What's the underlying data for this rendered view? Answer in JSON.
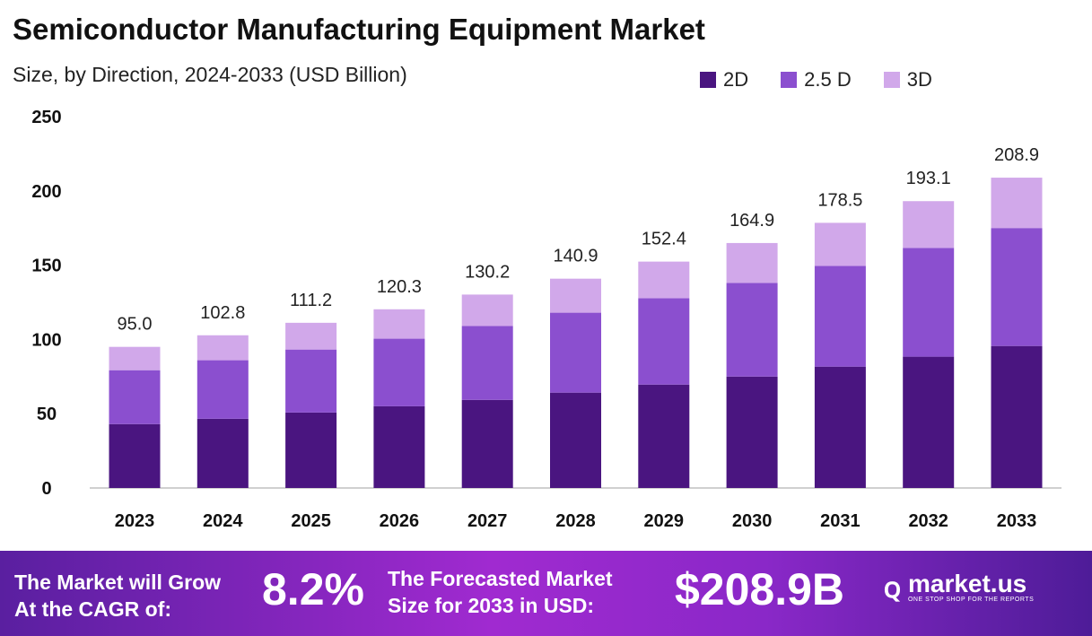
{
  "chart_data": {
    "type": "bar",
    "stacked": true,
    "title": "Semiconductor Manufacturing Equipment Market",
    "subtitle": "Size, by Direction, 2024-2033 (USD Billion)",
    "categories": [
      "2023",
      "2024",
      "2025",
      "2026",
      "2027",
      "2028",
      "2029",
      "2030",
      "2031",
      "2032",
      "2033"
    ],
    "series": [
      {
        "name": "2D",
        "color": "#4a1580",
        "values": [
          43.0,
          46.6,
          50.8,
          55.0,
          59.3,
          64.2,
          69.6,
          75.0,
          81.7,
          88.4,
          95.6
        ]
      },
      {
        "name": "2.5 D",
        "color": "#8b4fcf",
        "values": [
          36.3,
          39.4,
          42.4,
          45.5,
          49.7,
          53.8,
          58.1,
          63.0,
          67.8,
          73.2,
          79.4
        ]
      },
      {
        "name": "3D",
        "color": "#d1a8ea",
        "values": [
          15.7,
          16.8,
          18.0,
          19.8,
          21.2,
          22.9,
          24.7,
          26.9,
          29.0,
          31.5,
          33.9
        ]
      }
    ],
    "totals": [
      "95.0",
      "102.8",
      "111.2",
      "120.3",
      "130.2",
      "140.9",
      "152.4",
      "164.9",
      "178.5",
      "193.1",
      "208.9"
    ],
    "yticks": [
      "0",
      "50",
      "100",
      "150",
      "200",
      "250"
    ],
    "ylim": [
      0,
      250
    ],
    "legend": "top-right",
    "grid": false
  },
  "banner": {
    "cagr_label_1": "The Market will Grow",
    "cagr_label_2": "At the CAGR of:",
    "cagr_value": "8.2%",
    "forecast_label_1": "The Forecasted Market",
    "forecast_label_2": "Size for 2033 in USD:",
    "forecast_value": "$208.9B",
    "logo_name": "market.us",
    "logo_tagline": "ONE STOP SHOP FOR THE REPORTS"
  }
}
